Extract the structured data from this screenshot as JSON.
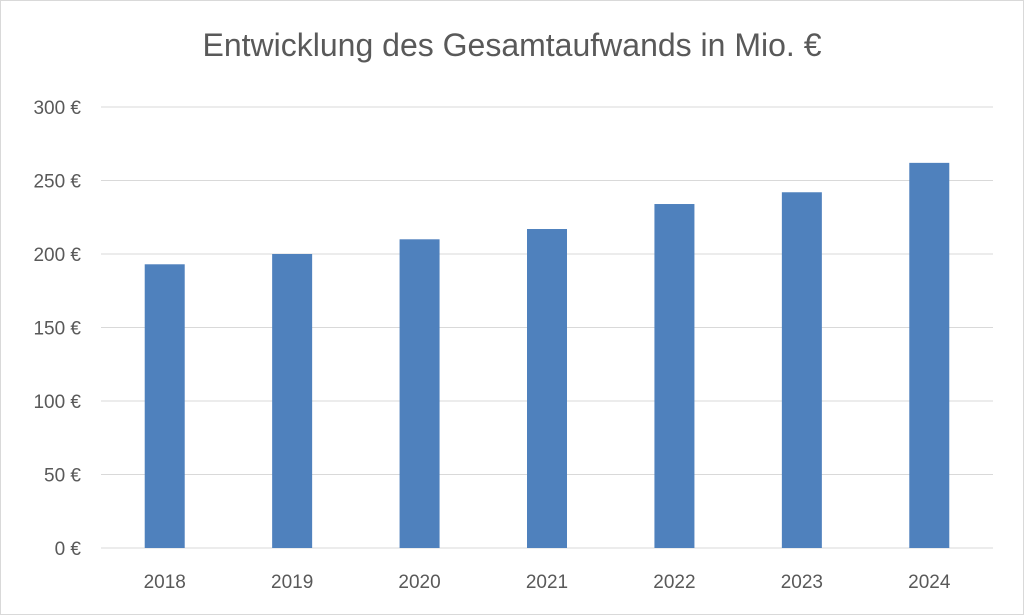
{
  "chart_data": {
    "type": "bar",
    "title": "Entwicklung des Gesamtaufwands in Mio. €",
    "categories": [
      "2018",
      "2019",
      "2020",
      "2021",
      "2022",
      "2023",
      "2024"
    ],
    "values": [
      193,
      200,
      210,
      217,
      234,
      242,
      262
    ],
    "y_unit_suffix": " €",
    "ylim": [
      0,
      300
    ],
    "yticks": [
      "0 €",
      "50 €",
      "100 €",
      "150 €",
      "200 €",
      "250 €",
      "300 €"
    ],
    "grid": true,
    "legend": "none",
    "bar_color": "#4f81bd",
    "grid_color": "#d9d9d9"
  }
}
